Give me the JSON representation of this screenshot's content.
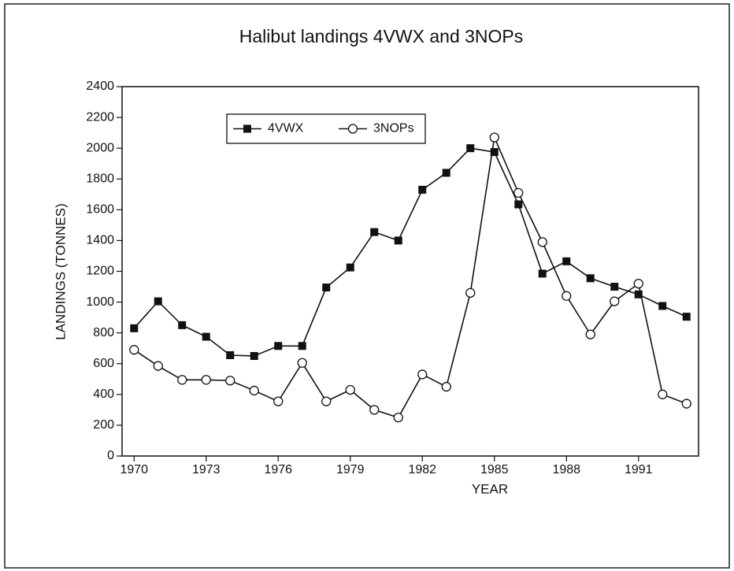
{
  "chart_data": {
    "type": "line",
    "title": "Halibut landings 4VWX and 3NOPs",
    "x_label": "YEAR",
    "y_label": "LANDINGS (TONNES)",
    "x": [
      1970,
      1971,
      1972,
      1973,
      1974,
      1975,
      1976,
      1977,
      1978,
      1979,
      1980,
      1981,
      1982,
      1983,
      1984,
      1985,
      1986,
      1987,
      1988,
      1989,
      1990,
      1991,
      1992,
      1993
    ],
    "series": [
      {
        "name": "4VWX",
        "color": "#111111",
        "marker": "filled-square",
        "values": [
          830,
          1005,
          850,
          775,
          655,
          650,
          715,
          715,
          1095,
          1225,
          1455,
          1400,
          1730,
          1840,
          2000,
          1975,
          1635,
          1185,
          1265,
          1155,
          1100,
          1050,
          975,
          905
        ]
      },
      {
        "name": "3NOPs",
        "color": "#111111",
        "marker": "open-circle",
        "values": [
          690,
          585,
          495,
          495,
          490,
          425,
          355,
          605,
          355,
          430,
          300,
          250,
          530,
          450,
          1060,
          2070,
          1710,
          1390,
          1040,
          790,
          1005,
          1120,
          400,
          340
        ]
      }
    ],
    "xlim": [
      1969.5,
      1993.5
    ],
    "xticks": [
      1970,
      1973,
      1976,
      1979,
      1982,
      1985,
      1988,
      1991
    ],
    "ylim": [
      0,
      2400
    ],
    "yticks": [
      0,
      200,
      400,
      600,
      800,
      1000,
      1200,
      1400,
      1600,
      1800,
      2000,
      2200,
      2400
    ],
    "legend": "upper left"
  }
}
